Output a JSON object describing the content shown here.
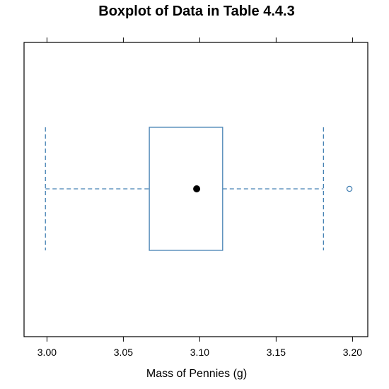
{
  "chart_data": {
    "type": "boxplot",
    "title": "Boxplot of Data in Table 4.4.3",
    "xlabel": "Mass of Pennies (g)",
    "ylabel": "",
    "xlim": [
      2.985,
      3.21
    ],
    "ticks": [
      3.0,
      3.05,
      3.1,
      3.15,
      3.2
    ],
    "tick_labels": [
      "3.00",
      "3.05",
      "3.10",
      "3.15",
      "3.20"
    ],
    "ticks_on_top": true,
    "box": {
      "whisker_low": 2.999,
      "q1": 3.067,
      "median": 3.098,
      "q3": 3.115,
      "whisker_high": 3.181
    },
    "outliers": [
      3.198
    ],
    "box_color": "#4682b4",
    "median_marker": "filled-dot",
    "grid": false
  }
}
